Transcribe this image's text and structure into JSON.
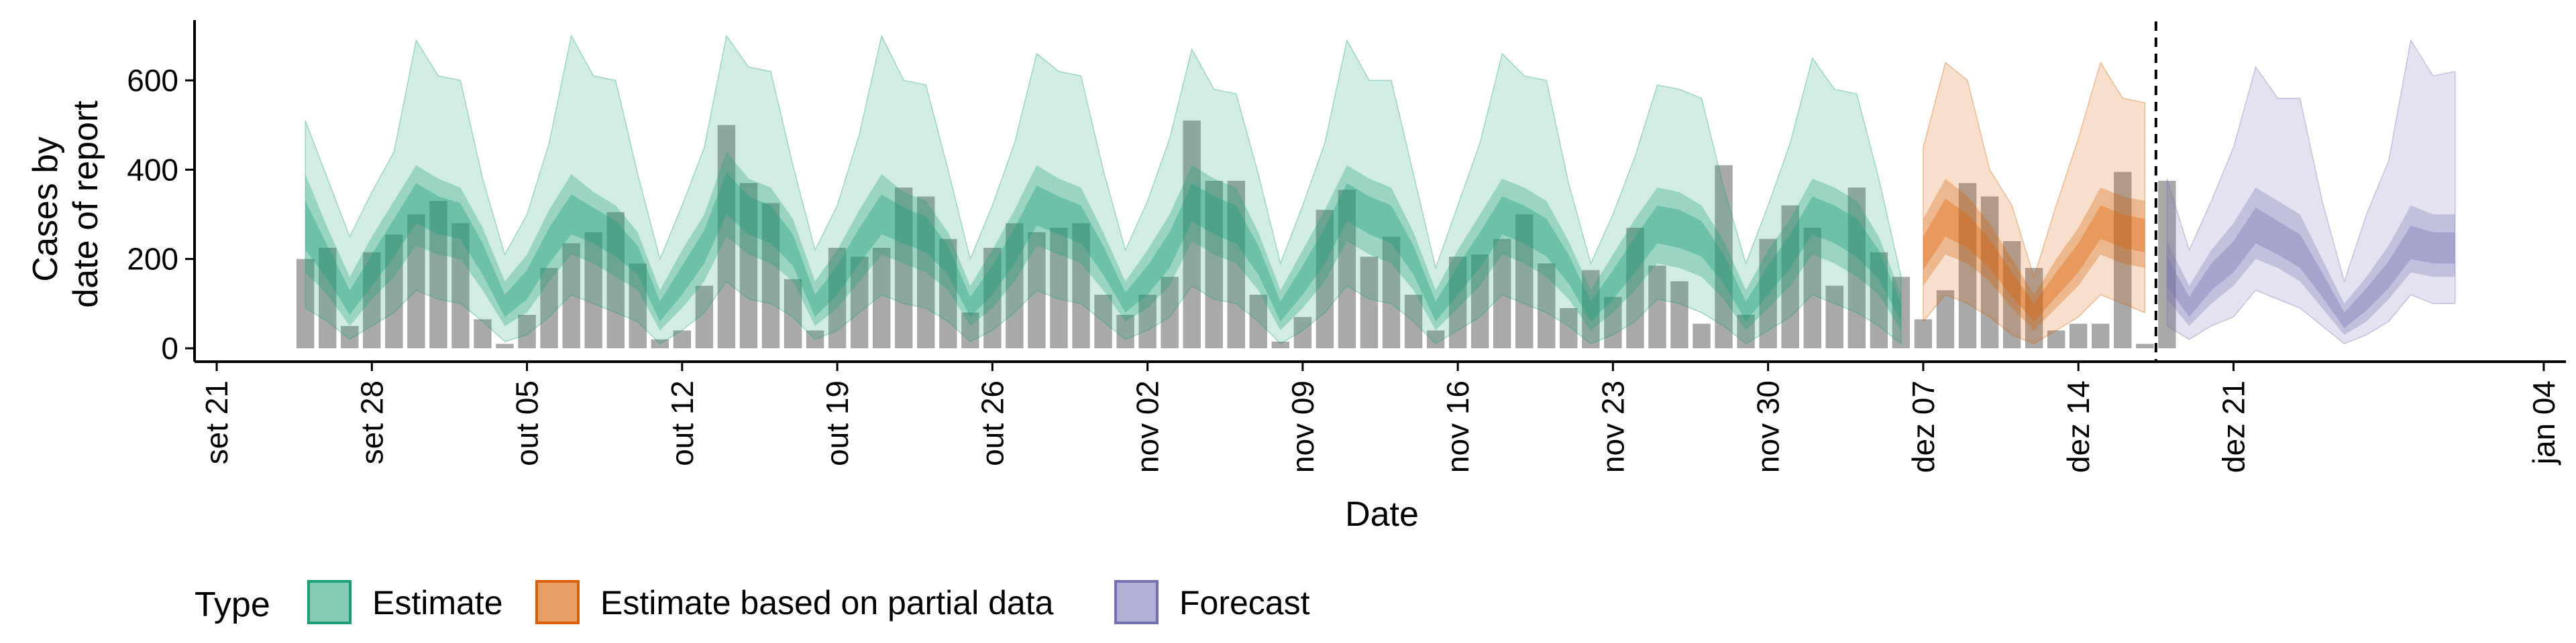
{
  "chart_data": {
    "type": "area",
    "title": "",
    "xlabel": "Date",
    "ylabel_lines": [
      "Cases by",
      "date of report"
    ],
    "ylim": [
      -30,
      750
    ],
    "y_ticks": [
      0,
      200,
      400,
      600
    ],
    "x_ticks": [
      {
        "label": "set 21",
        "date": "2020-09-21"
      },
      {
        "label": "set 28",
        "date": "2020-09-28"
      },
      {
        "label": "out 05",
        "date": "2020-10-05"
      },
      {
        "label": "out 12",
        "date": "2020-10-12"
      },
      {
        "label": "out 19",
        "date": "2020-10-19"
      },
      {
        "label": "out 26",
        "date": "2020-10-26"
      },
      {
        "label": "nov 02",
        "date": "2020-11-02"
      },
      {
        "label": "nov 09",
        "date": "2020-11-09"
      },
      {
        "label": "nov 16",
        "date": "2020-11-16"
      },
      {
        "label": "nov 23",
        "date": "2020-11-23"
      },
      {
        "label": "nov 30",
        "date": "2020-11-30"
      },
      {
        "label": "dez 07",
        "date": "2020-12-07"
      },
      {
        "label": "dez 14",
        "date": "2020-12-14"
      },
      {
        "label": "dez 21",
        "date": "2020-12-21"
      },
      {
        "label": "jan 04",
        "date": "2021-01-04"
      }
    ],
    "xlim": [
      "2020-09-20",
      "2021-01-05"
    ],
    "start_date": "2020-09-25",
    "forecast_cutoff_date": "2020-12-18",
    "reported_cases": [
      200,
      225,
      50,
      215,
      255,
      300,
      330,
      280,
      65,
      10,
      75,
      180,
      235,
      260,
      305,
      190,
      20,
      40,
      140,
      500,
      370,
      325,
      155,
      40,
      225,
      205,
      225,
      360,
      340,
      245,
      80,
      225,
      280,
      260,
      270,
      280,
      120,
      75,
      120,
      160,
      510,
      375,
      375,
      120,
      15,
      70,
      310,
      355,
      205,
      250,
      120,
      40,
      205,
      210,
      245,
      300,
      190,
      90,
      175,
      115,
      270,
      185,
      150,
      55,
      410,
      75,
      245,
      320,
      270,
      140,
      360,
      215,
      160,
      65,
      130,
      370,
      340,
      240,
      180,
      40,
      55,
      55,
      395,
      10,
      375
    ],
    "estimate": {
      "median": [
        270,
        190,
        100,
        170,
        250,
        330,
        300,
        290,
        200,
        90,
        140,
        230,
        300,
        280,
        250,
        200,
        80,
        150,
        230,
        350,
        300,
        280,
        220,
        90,
        150,
        230,
        300,
        280,
        260,
        200,
        90,
        150,
        230,
        320,
        300,
        280,
        200,
        100,
        150,
        220,
        330,
        300,
        280,
        200,
        80,
        150,
        230,
        330,
        300,
        280,
        200,
        80,
        150,
        220,
        300,
        280,
        250,
        180,
        80,
        140,
        210,
        280,
        270,
        250,
        180,
        80,
        150,
        220,
        300,
        280,
        250,
        190,
        80
      ],
      "q25": [
        170,
        120,
        50,
        110,
        160,
        230,
        210,
        200,
        130,
        50,
        80,
        150,
        210,
        190,
        160,
        130,
        40,
        90,
        150,
        250,
        210,
        190,
        150,
        50,
        90,
        150,
        210,
        190,
        170,
        130,
        50,
        90,
        150,
        230,
        210,
        190,
        130,
        60,
        90,
        140,
        240,
        210,
        190,
        130,
        40,
        90,
        150,
        240,
        210,
        190,
        130,
        40,
        90,
        140,
        210,
        190,
        160,
        110,
        40,
        80,
        130,
        190,
        180,
        160,
        110,
        40,
        90,
        140,
        210,
        190,
        160,
        120,
        40
      ],
      "q75": [
        390,
        270,
        160,
        250,
        330,
        410,
        380,
        360,
        270,
        150,
        210,
        310,
        390,
        350,
        320,
        260,
        130,
        220,
        300,
        440,
        380,
        360,
        290,
        150,
        220,
        310,
        390,
        350,
        330,
        260,
        140,
        220,
        310,
        410,
        380,
        360,
        260,
        150,
        220,
        300,
        410,
        380,
        360,
        260,
        130,
        220,
        310,
        410,
        380,
        360,
        260,
        130,
        220,
        300,
        380,
        360,
        330,
        240,
        130,
        210,
        290,
        360,
        350,
        320,
        240,
        130,
        220,
        290,
        380,
        360,
        330,
        250,
        120
      ],
      "q05": [
        90,
        60,
        20,
        50,
        80,
        130,
        110,
        100,
        60,
        15,
        30,
        70,
        120,
        100,
        80,
        60,
        10,
        40,
        80,
        150,
        110,
        100,
        70,
        20,
        40,
        80,
        120,
        100,
        90,
        60,
        15,
        40,
        80,
        130,
        110,
        100,
        60,
        20,
        40,
        70,
        140,
        110,
        100,
        60,
        10,
        40,
        80,
        140,
        110,
        100,
        60,
        10,
        40,
        70,
        120,
        100,
        80,
        50,
        10,
        30,
        60,
        110,
        100,
        80,
        50,
        10,
        40,
        70,
        120,
        100,
        80,
        50,
        10
      ],
      "q95": [
        510,
        380,
        250,
        350,
        440,
        690,
        610,
        600,
        380,
        210,
        300,
        460,
        700,
        610,
        600,
        390,
        200,
        320,
        450,
        700,
        630,
        620,
        410,
        220,
        320,
        480,
        700,
        600,
        590,
        400,
        200,
        320,
        460,
        660,
        620,
        610,
        400,
        220,
        330,
        470,
        670,
        580,
        570,
        390,
        190,
        320,
        460,
        690,
        600,
        600,
        390,
        180,
        320,
        460,
        660,
        610,
        600,
        370,
        190,
        300,
        430,
        590,
        580,
        560,
        360,
        190,
        320,
        460,
        650,
        580,
        570,
        380,
        160
      ]
    },
    "partial": {
      "median": [
        210,
        290,
        260,
        210,
        140,
        80,
        140,
        200,
        280,
        260,
        250
      ],
      "q25": [
        140,
        210,
        190,
        150,
        90,
        40,
        90,
        140,
        210,
        190,
        180
      ],
      "q75": [
        290,
        380,
        340,
        280,
        200,
        120,
        200,
        270,
        360,
        340,
        330
      ],
      "q05": [
        60,
        120,
        100,
        70,
        30,
        10,
        40,
        70,
        120,
        100,
        80
      ],
      "q95": [
        450,
        640,
        600,
        400,
        320,
        160,
        320,
        470,
        640,
        560,
        550
      ]
    },
    "forecast": {
      "median": [
        170,
        90,
        160,
        200,
        270,
        240,
        210,
        140,
        60,
        110,
        160,
        230,
        220,
        220
      ],
      "q25": [
        110,
        50,
        100,
        140,
        200,
        180,
        150,
        90,
        30,
        60,
        110,
        170,
        160,
        160
      ],
      "q75": [
        240,
        140,
        220,
        280,
        360,
        330,
        300,
        200,
        100,
        160,
        230,
        320,
        300,
        300
      ],
      "q05": [
        50,
        20,
        50,
        70,
        130,
        110,
        90,
        50,
        10,
        30,
        60,
        120,
        100,
        100
      ],
      "q95": [
        380,
        220,
        330,
        450,
        630,
        560,
        560,
        330,
        150,
        300,
        420,
        690,
        610,
        620
      ]
    },
    "legend": {
      "title": "Type",
      "placement": "bottom-left",
      "items": [
        {
          "label": "Estimate",
          "color": "#1b9e77"
        },
        {
          "label": "Estimate based on partial data",
          "color": "#d95f02"
        },
        {
          "label": "Forecast",
          "color": "#7570b3"
        }
      ]
    },
    "colors": {
      "bars": "#a9a9a9",
      "estimate": "#1b9e77",
      "partial": "#d95f02",
      "forecast": "#7570b3"
    },
    "grid": false
  }
}
